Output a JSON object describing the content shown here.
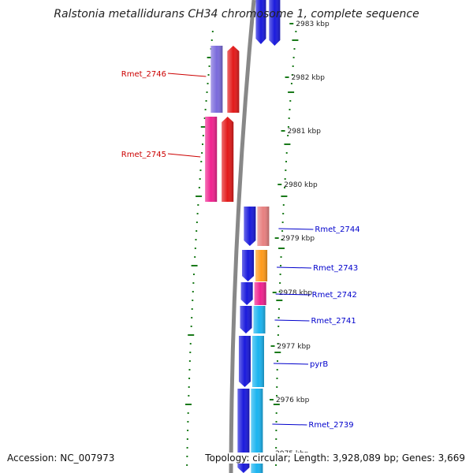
{
  "title": "Ralstonia metallidurans CH34 chromosome 1, complete sequence",
  "footer": {
    "accession_label": "Accession:",
    "accession": "NC_007973",
    "topology_label": "Topology:",
    "topology": "circular;",
    "length_label": "Length:",
    "length": "3,928,089 bp;",
    "genes_label": "Genes:",
    "genes": "3,669"
  },
  "colors": {
    "backbone": "#888888",
    "tick": "#1a7a1a",
    "label_red": "#cc0000",
    "label_blue": "#0000cc"
  },
  "scale_labels": [
    "2983 kbp",
    "2982 kbp",
    "2981 kbp",
    "2980 kbp",
    "2979 kbp",
    "2978 kbp",
    "2977 kbp",
    "2976 kbp",
    "2975 kbp"
  ],
  "genes": [
    {
      "label": "",
      "strand": "reverse",
      "color": "#1a1adc"
    },
    {
      "label": "",
      "strand": "reverse",
      "color": "#1a1adc"
    },
    {
      "label": "Rmet_2746",
      "strand": "forward",
      "color": "#e31a1a",
      "cog_color": "#7a6adc",
      "label_color": "red"
    },
    {
      "label": "Rmet_2745",
      "strand": "forward",
      "color": "#e31a1a",
      "cog_color": "#f0228f",
      "label_color": "red"
    },
    {
      "label": "Rmet_2744",
      "strand": "reverse",
      "color": "#1a1adc",
      "cog_color": "#e88080",
      "label_color": "blue"
    },
    {
      "label": "Rmet_2743",
      "strand": "reverse",
      "color": "#1a1adc",
      "cog_color": "#ff9a1a",
      "label_color": "blue"
    },
    {
      "label": "Rmet_2742",
      "strand": "reverse",
      "color": "#1a1adc",
      "cog_color": "#f0228f",
      "label_color": "blue"
    },
    {
      "label": "Rmet_2741",
      "strand": "reverse",
      "color": "#1a1adc",
      "cog_color": "#1ab4f0",
      "label_color": "blue"
    },
    {
      "label": "pyrB",
      "strand": "reverse",
      "color": "#1a1adc",
      "cog_color": "#1ab4f0",
      "label_color": "blue"
    },
    {
      "label": "Rmet_2739",
      "strand": "reverse",
      "color": "#1a1adc",
      "cog_color": "#1ab4f0",
      "label_color": "blue"
    }
  ]
}
